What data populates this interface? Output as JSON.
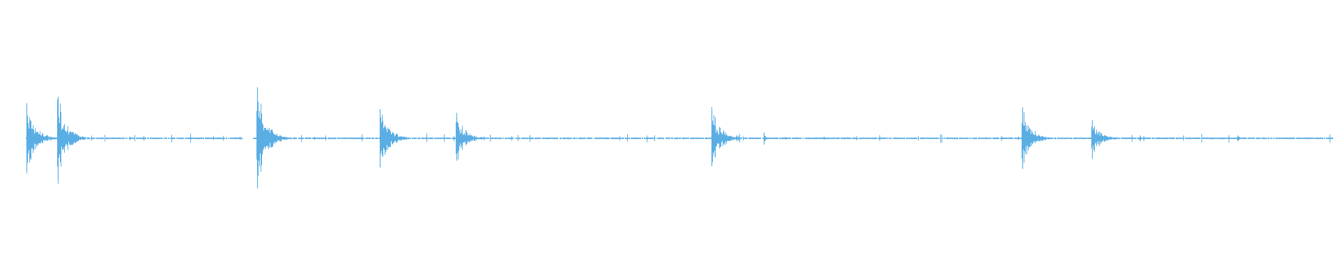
{
  "waveform": {
    "color": "#5aaee3",
    "background": "#ffffff",
    "bursts": [
      {
        "time_fraction": 0.02,
        "amplitude": 0.23
      },
      {
        "time_fraction": 0.043,
        "amplitude": 0.3
      },
      {
        "time_fraction": 0.192,
        "amplitude": 0.36
      },
      {
        "time_fraction": 0.284,
        "amplitude": 0.21
      },
      {
        "time_fraction": 0.341,
        "amplitude": 0.16
      },
      {
        "time_fraction": 0.532,
        "amplitude": 0.2
      },
      {
        "time_fraction": 0.571,
        "amplitude": 0.04
      },
      {
        "time_fraction": 0.764,
        "amplitude": 0.22
      },
      {
        "time_fraction": 0.816,
        "amplitude": 0.13
      },
      {
        "time_fraction": 0.925,
        "amplitude": 0.02
      }
    ],
    "silent_gaps": [
      [
        0.181,
        0.189
      ]
    ]
  }
}
